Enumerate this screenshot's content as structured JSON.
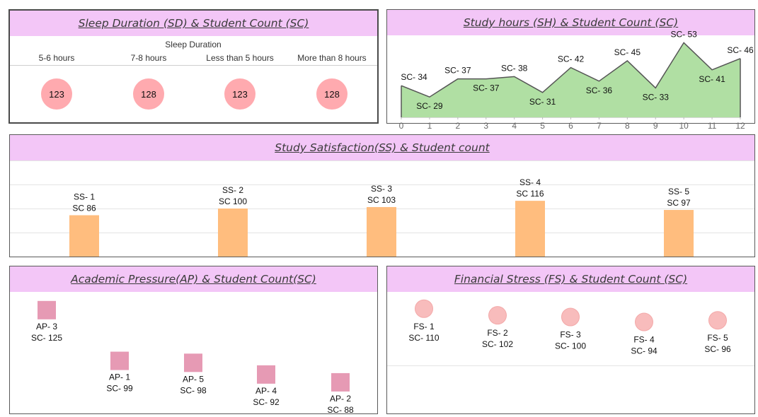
{
  "sleep": {
    "title": "Sleep Duration (SD) & Student Count (SC)",
    "header": "Sleep Duration",
    "chart_data": {
      "type": "scatter",
      "categories": [
        "5-6 hours",
        "7-8 hours",
        "Less than 5 hours",
        "More than 8 hours"
      ],
      "values": [
        123,
        128,
        123,
        128
      ],
      "color": "#ffaaaf"
    }
  },
  "study": {
    "title": "Study hours (SH) & Student Count (SC)",
    "chart_data": {
      "type": "area",
      "x": [
        0,
        1,
        2,
        3,
        4,
        5,
        6,
        7,
        8,
        9,
        10,
        11,
        12
      ],
      "values": [
        34,
        29,
        37,
        37,
        38,
        31,
        42,
        36,
        45,
        33,
        53,
        41,
        46
      ],
      "labels": [
        "SC- 34",
        "SC- 29",
        "SC- 37",
        "SC- 37",
        "SC- 38",
        "SC- 31",
        "SC- 42",
        "SC- 36",
        "SC- 45",
        "SC- 33",
        "SC- 53",
        "SC- 41",
        "SC- 46"
      ],
      "xlim": [
        0,
        12
      ],
      "fill": "#b0dfa3",
      "line": "#555555"
    }
  },
  "satisfaction": {
    "title": "Study Satisfaction(SS) & Student count",
    "chart_data": {
      "type": "bar",
      "categories": [
        "SS- 1",
        "SS- 2",
        "SS- 3",
        "SS- 4",
        "SS- 5"
      ],
      "values": [
        86,
        100,
        103,
        116,
        97
      ],
      "labels": [
        "SC 86",
        "SC 100",
        "SC 103",
        "SC 116",
        "SC 97"
      ],
      "color": "#ffbd7e",
      "grid": true
    }
  },
  "academic": {
    "title": "Academic Pressure(AP) & Student Count(SC)",
    "chart_data": {
      "type": "scatter",
      "categories": [
        "AP- 3",
        "AP- 1",
        "AP- 5",
        "AP- 4",
        "AP- 2"
      ],
      "values": [
        125,
        99,
        98,
        92,
        88
      ],
      "labels": [
        "SC- 125",
        "SC- 99",
        "SC- 98",
        "SC- 92",
        "SC- 88"
      ],
      "marker": "square",
      "color": "#e69ab4"
    }
  },
  "financial": {
    "title": "Financial Stress (FS) & Student Count (SC)",
    "chart_data": {
      "type": "scatter",
      "categories": [
        "FS- 1",
        "FS- 2",
        "FS- 3",
        "FS- 4",
        "FS- 5"
      ],
      "values": [
        110,
        102,
        100,
        94,
        96
      ],
      "labels": [
        "SC- 110",
        "SC- 102",
        "SC- 100",
        "SC- 94",
        "SC- 96"
      ],
      "marker": "circle",
      "color": "#f8bcbc"
    }
  }
}
